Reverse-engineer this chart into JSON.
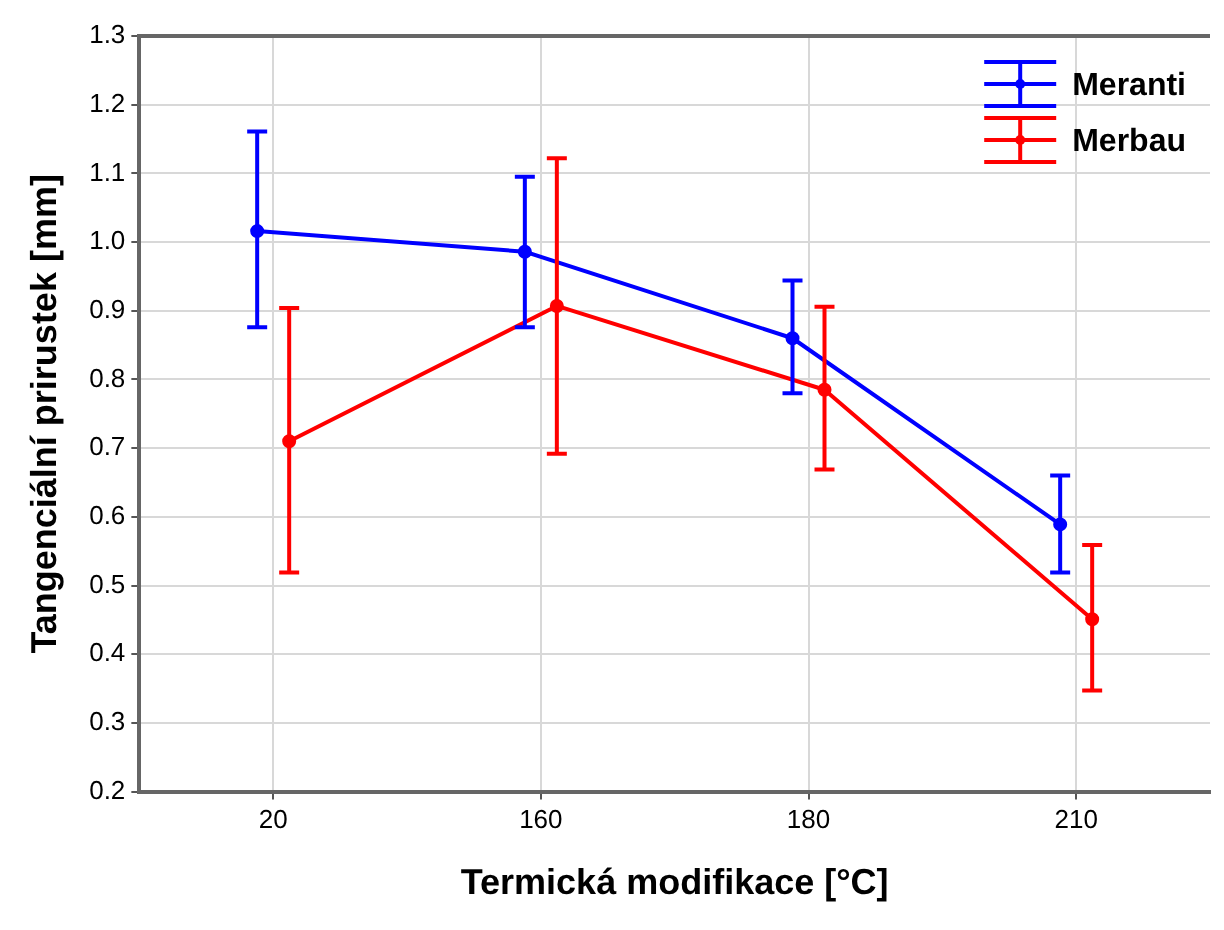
{
  "chart_data": {
    "type": "line",
    "xlabel": "Termická modifikace [°C]",
    "ylabel": "Tangenciální prirustek [mm]",
    "categories": [
      "20",
      "160",
      "180",
      "210"
    ],
    "series": [
      {
        "name": "Meranti",
        "color": "#0000ff",
        "values": [
          1.016,
          0.986,
          0.86,
          0.589
        ],
        "errors": [
          [
            0.876,
            1.161
          ],
          [
            0.876,
            1.095
          ],
          [
            0.78,
            0.944
          ],
          [
            0.519,
            0.66
          ]
        ]
      },
      {
        "name": "Merbau",
        "color": "#ff0000",
        "values": [
          0.71,
          0.907,
          0.785,
          0.451
        ],
        "errors": [
          [
            0.519,
            0.904
          ],
          [
            0.692,
            1.122
          ],
          [
            0.669,
            0.906
          ],
          [
            0.347,
            0.559
          ]
        ]
      }
    ],
    "ylim": [
      0.2,
      1.3
    ],
    "yticks": [
      0.2,
      0.3,
      0.4,
      0.5,
      0.6,
      0.7,
      0.8,
      0.9,
      {
        "value": 1,
        "label": "1.0"
      },
      1.1,
      1.2,
      1.3
    ],
    "grid": true,
    "legend": "top right",
    "marker": "circle",
    "line_style": "solid"
  }
}
